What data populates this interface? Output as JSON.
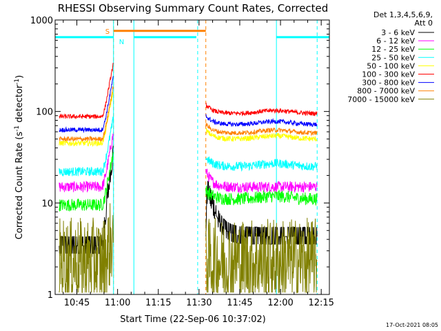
{
  "chart_data": {
    "type": "line",
    "title": "RHESSI Observing Summary Count Rates, Corrected",
    "xlabel": "Start Time (22-Sep-06 10:37:02)",
    "ylabel": "Corrected Count Rate (s⁻¹ detector⁻¹)",
    "ylabel_parts": [
      "Corrected Count Rate (s",
      "-1",
      " detector",
      "-1",
      ")"
    ],
    "yscale": "log",
    "ylim": [
      1,
      1000
    ],
    "xlim_min": [
      37,
      138
    ],
    "x_ticks": [
      {
        "t": 45,
        "label": "10:45"
      },
      {
        "t": 60,
        "label": "11:00"
      },
      {
        "t": 75,
        "label": "11:15"
      },
      {
        "t": 90,
        "label": "11:30"
      },
      {
        "t": 105,
        "label": "11:45"
      },
      {
        "t": 120,
        "label": "12:00"
      },
      {
        "t": 135,
        "label": "12:15"
      }
    ],
    "y_ticks": [
      {
        "v": 1,
        "label": "1"
      },
      {
        "v": 10,
        "label": "10"
      },
      {
        "v": 100,
        "label": "100"
      },
      {
        "v": 1000,
        "label": "1000"
      }
    ],
    "legend_header": [
      "Det 1,3,4,5,6,9,",
      "Att 0"
    ],
    "series": [
      {
        "name": "3 - 6 keV",
        "color": "#000000",
        "before": 3.4,
        "after": 4.3,
        "noise": 0.2
      },
      {
        "name": "6 - 12 keV",
        "color": "#ff00ff",
        "before": 15,
        "after": 15,
        "noise": 0.06
      },
      {
        "name": "12 - 25 keV",
        "color": "#00ff00",
        "before": 9.5,
        "after": 11,
        "noise": 0.07
      },
      {
        "name": "25 - 50 keV",
        "color": "#00ffff",
        "before": 22,
        "after": 25,
        "noise": 0.05
      },
      {
        "name": "50 - 100 keV",
        "color": "#ffff00",
        "before": 45,
        "after": 50,
        "noise": 0.03
      },
      {
        "name": "100 - 300 keV",
        "color": "#ff0000",
        "before": 88,
        "after": 95,
        "noise": 0.025
      },
      {
        "name": "300 - 800 keV",
        "color": "#0000ff",
        "before": 63,
        "after": 72,
        "noise": 0.025
      },
      {
        "name": "800 - 7000 keV",
        "color": "#ff8000",
        "before": 50,
        "after": 58,
        "noise": 0.025
      },
      {
        "name": "7000 - 15000 keV",
        "color": "#808000",
        "before": 2.3,
        "after": 2.3,
        "noise": 0.5
      }
    ],
    "data_gaps": [
      [
        58.5,
        92.5
      ]
    ],
    "data_segments": [
      [
        38.5,
        58.5
      ],
      [
        92.5,
        133.5
      ]
    ],
    "flag_bars": [
      {
        "name": "S",
        "label": "S",
        "color": "#ff8000",
        "t_start": 58.5,
        "t_end": 92.5,
        "level": 760
      },
      {
        "name": "N",
        "label": "N",
        "color": "#00ffff",
        "t_start": 37,
        "t_end": 58.5,
        "level": 650
      },
      {
        "name": "N",
        "label": "N",
        "color": "#00ffff",
        "t_start": 66,
        "t_end": 89,
        "level": 650
      },
      {
        "name": "N",
        "label": "N",
        "color": "#00ffff",
        "t_start": 118.5,
        "t_end": 138,
        "level": 650
      }
    ],
    "vlines": [
      {
        "t": 58.5,
        "color": "#ff8000",
        "style": "dashed"
      },
      {
        "t": 58.5,
        "color": "#00ffff",
        "style": "solid"
      },
      {
        "t": 66,
        "color": "#00ffff",
        "style": "solid"
      },
      {
        "t": 89.5,
        "color": "#00ffff",
        "style": "dashed"
      },
      {
        "t": 92.5,
        "color": "#ff8000",
        "style": "dashed"
      },
      {
        "t": 118.5,
        "color": "#00ffff",
        "style": "solid"
      },
      {
        "t": 133.5,
        "color": "#00ffff",
        "style": "dashed"
      }
    ],
    "footer_stamp": "17-Oct-2021 08:05"
  }
}
